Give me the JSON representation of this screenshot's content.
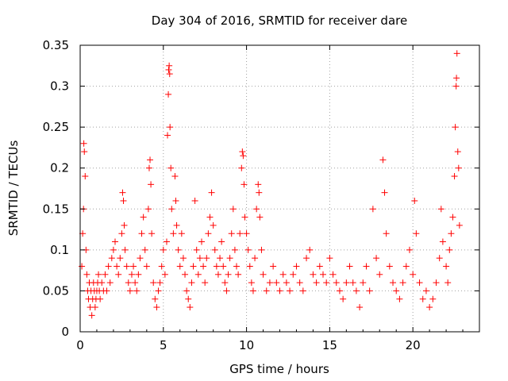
{
  "chart_data": {
    "type": "scatter",
    "title": "Day 304 of 2016, SRMTID for receiver dare",
    "xlabel": "GPS time / hours",
    "ylabel": "SRMTID / TECUs",
    "xlim": [
      0,
      24
    ],
    "ylim": [
      0,
      0.35
    ],
    "x_ticks": [
      0,
      5,
      10,
      15,
      20
    ],
    "x_tick_labels": [
      "0",
      "5",
      "10",
      "15",
      "20"
    ],
    "y_ticks": [
      0,
      0.05,
      0.1,
      0.15,
      0.2,
      0.25,
      0.3,
      0.35
    ],
    "y_tick_labels": [
      "0",
      "0.05",
      "0.1",
      "0.15",
      "0.2",
      "0.25",
      "0.3",
      "0.35"
    ],
    "grid": true,
    "marker": "+",
    "marker_color": "#ff0000",
    "series": [
      {
        "name": "SRMTID",
        "points": [
          [
            0.1,
            0.08
          ],
          [
            0.15,
            0.12
          ],
          [
            0.2,
            0.15
          ],
          [
            0.22,
            0.23
          ],
          [
            0.25,
            0.22
          ],
          [
            0.3,
            0.19
          ],
          [
            0.35,
            0.1
          ],
          [
            0.4,
            0.07
          ],
          [
            0.45,
            0.05
          ],
          [
            0.5,
            0.04
          ],
          [
            0.55,
            0.06
          ],
          [
            0.6,
            0.03
          ],
          [
            0.65,
            0.05
          ],
          [
            0.7,
            0.02
          ],
          [
            0.75,
            0.04
          ],
          [
            0.8,
            0.06
          ],
          [
            0.85,
            0.05
          ],
          [
            0.9,
            0.03
          ],
          [
            0.95,
            0.04
          ],
          [
            1.0,
            0.05
          ],
          [
            1.05,
            0.06
          ],
          [
            1.1,
            0.07
          ],
          [
            1.15,
            0.05
          ],
          [
            1.2,
            0.04
          ],
          [
            1.3,
            0.06
          ],
          [
            1.4,
            0.05
          ],
          [
            1.5,
            0.07
          ],
          [
            1.6,
            0.05
          ],
          [
            1.7,
            0.08
          ],
          [
            1.8,
            0.06
          ],
          [
            1.9,
            0.09
          ],
          [
            2.0,
            0.1
          ],
          [
            2.1,
            0.11
          ],
          [
            2.2,
            0.08
          ],
          [
            2.3,
            0.07
          ],
          [
            2.4,
            0.09
          ],
          [
            2.5,
            0.12
          ],
          [
            2.55,
            0.17
          ],
          [
            2.6,
            0.16
          ],
          [
            2.65,
            0.13
          ],
          [
            2.7,
            0.1
          ],
          [
            2.8,
            0.08
          ],
          [
            2.9,
            0.06
          ],
          [
            3.0,
            0.05
          ],
          [
            3.1,
            0.07
          ],
          [
            3.2,
            0.08
          ],
          [
            3.3,
            0.06
          ],
          [
            3.4,
            0.05
          ],
          [
            3.5,
            0.07
          ],
          [
            3.6,
            0.09
          ],
          [
            3.7,
            0.12
          ],
          [
            3.8,
            0.14
          ],
          [
            3.9,
            0.1
          ],
          [
            4.0,
            0.08
          ],
          [
            4.1,
            0.15
          ],
          [
            4.15,
            0.2
          ],
          [
            4.2,
            0.21
          ],
          [
            4.25,
            0.18
          ],
          [
            4.3,
            0.12
          ],
          [
            4.4,
            0.06
          ],
          [
            4.5,
            0.04
          ],
          [
            4.6,
            0.03
          ],
          [
            4.7,
            0.05
          ],
          [
            4.8,
            0.06
          ],
          [
            4.9,
            0.08
          ],
          [
            5.0,
            0.1
          ],
          [
            5.1,
            0.07
          ],
          [
            5.2,
            0.11
          ],
          [
            5.25,
            0.24
          ],
          [
            5.3,
            0.29
          ],
          [
            5.32,
            0.32
          ],
          [
            5.35,
            0.325
          ],
          [
            5.38,
            0.315
          ],
          [
            5.4,
            0.25
          ],
          [
            5.45,
            0.2
          ],
          [
            5.5,
            0.15
          ],
          [
            5.6,
            0.12
          ],
          [
            5.7,
            0.19
          ],
          [
            5.75,
            0.16
          ],
          [
            5.8,
            0.13
          ],
          [
            5.9,
            0.1
          ],
          [
            6.0,
            0.08
          ],
          [
            6.1,
            0.12
          ],
          [
            6.2,
            0.09
          ],
          [
            6.3,
            0.07
          ],
          [
            6.4,
            0.05
          ],
          [
            6.5,
            0.04
          ],
          [
            6.6,
            0.03
          ],
          [
            6.7,
            0.06
          ],
          [
            6.8,
            0.08
          ],
          [
            6.9,
            0.16
          ],
          [
            7.0,
            0.1
          ],
          [
            7.1,
            0.07
          ],
          [
            7.2,
            0.09
          ],
          [
            7.3,
            0.11
          ],
          [
            7.4,
            0.08
          ],
          [
            7.5,
            0.06
          ],
          [
            7.6,
            0.09
          ],
          [
            7.7,
            0.12
          ],
          [
            7.8,
            0.14
          ],
          [
            7.9,
            0.17
          ],
          [
            8.0,
            0.13
          ],
          [
            8.1,
            0.1
          ],
          [
            8.2,
            0.08
          ],
          [
            8.3,
            0.07
          ],
          [
            8.4,
            0.09
          ],
          [
            8.5,
            0.11
          ],
          [
            8.6,
            0.08
          ],
          [
            8.7,
            0.06
          ],
          [
            8.8,
            0.05
          ],
          [
            8.9,
            0.07
          ],
          [
            9.0,
            0.09
          ],
          [
            9.1,
            0.12
          ],
          [
            9.2,
            0.15
          ],
          [
            9.3,
            0.1
          ],
          [
            9.4,
            0.08
          ],
          [
            9.5,
            0.07
          ],
          [
            9.6,
            0.12
          ],
          [
            9.7,
            0.2
          ],
          [
            9.75,
            0.22
          ],
          [
            9.8,
            0.215
          ],
          [
            9.85,
            0.18
          ],
          [
            9.9,
            0.14
          ],
          [
            10.0,
            0.12
          ],
          [
            10.1,
            0.1
          ],
          [
            10.2,
            0.08
          ],
          [
            10.3,
            0.06
          ],
          [
            10.4,
            0.05
          ],
          [
            10.5,
            0.09
          ],
          [
            10.6,
            0.15
          ],
          [
            10.7,
            0.18
          ],
          [
            10.75,
            0.17
          ],
          [
            10.8,
            0.14
          ],
          [
            10.9,
            0.1
          ],
          [
            11.0,
            0.07
          ],
          [
            11.2,
            0.05
          ],
          [
            11.4,
            0.06
          ],
          [
            11.6,
            0.08
          ],
          [
            11.8,
            0.06
          ],
          [
            12.0,
            0.05
          ],
          [
            12.2,
            0.07
          ],
          [
            12.4,
            0.06
          ],
          [
            12.6,
            0.05
          ],
          [
            12.8,
            0.07
          ],
          [
            13.0,
            0.08
          ],
          [
            13.2,
            0.06
          ],
          [
            13.4,
            0.05
          ],
          [
            13.6,
            0.09
          ],
          [
            13.8,
            0.1
          ],
          [
            14.0,
            0.07
          ],
          [
            14.2,
            0.06
          ],
          [
            14.4,
            0.08
          ],
          [
            14.6,
            0.07
          ],
          [
            14.8,
            0.06
          ],
          [
            15.0,
            0.09
          ],
          [
            15.2,
            0.07
          ],
          [
            15.4,
            0.06
          ],
          [
            15.6,
            0.05
          ],
          [
            15.8,
            0.04
          ],
          [
            16.0,
            0.06
          ],
          [
            16.2,
            0.08
          ],
          [
            16.4,
            0.06
          ],
          [
            16.6,
            0.05
          ],
          [
            16.8,
            0.03
          ],
          [
            17.0,
            0.06
          ],
          [
            17.2,
            0.08
          ],
          [
            17.4,
            0.05
          ],
          [
            17.6,
            0.15
          ],
          [
            17.8,
            0.09
          ],
          [
            18.0,
            0.07
          ],
          [
            18.2,
            0.21
          ],
          [
            18.3,
            0.17
          ],
          [
            18.4,
            0.12
          ],
          [
            18.6,
            0.08
          ],
          [
            18.8,
            0.06
          ],
          [
            19.0,
            0.05
          ],
          [
            19.2,
            0.04
          ],
          [
            19.4,
            0.06
          ],
          [
            19.6,
            0.08
          ],
          [
            19.8,
            0.1
          ],
          [
            20.0,
            0.07
          ],
          [
            20.1,
            0.16
          ],
          [
            20.2,
            0.12
          ],
          [
            20.4,
            0.06
          ],
          [
            20.6,
            0.04
          ],
          [
            20.8,
            0.05
          ],
          [
            21.0,
            0.03
          ],
          [
            21.2,
            0.04
          ],
          [
            21.4,
            0.06
          ],
          [
            21.6,
            0.09
          ],
          [
            21.7,
            0.15
          ],
          [
            21.8,
            0.11
          ],
          [
            22.0,
            0.08
          ],
          [
            22.1,
            0.06
          ],
          [
            22.2,
            0.1
          ],
          [
            22.3,
            0.12
          ],
          [
            22.4,
            0.14
          ],
          [
            22.5,
            0.19
          ],
          [
            22.55,
            0.25
          ],
          [
            22.6,
            0.3
          ],
          [
            22.62,
            0.31
          ],
          [
            22.65,
            0.34
          ],
          [
            22.7,
            0.22
          ],
          [
            22.75,
            0.2
          ],
          [
            22.8,
            0.13
          ]
        ]
      }
    ]
  }
}
